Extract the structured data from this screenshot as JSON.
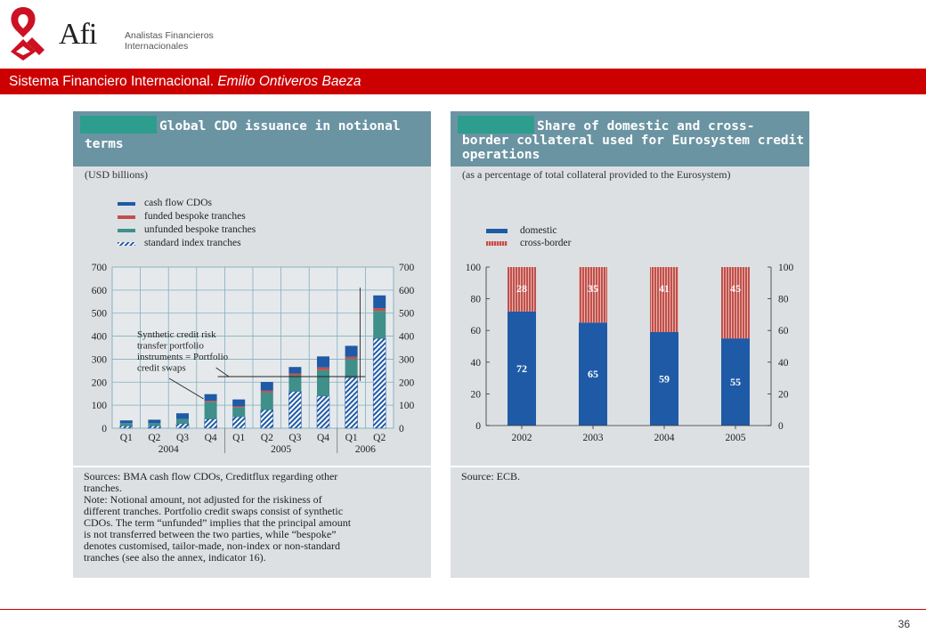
{
  "header": {
    "logo_text": "Afi",
    "logo_sub_line1": "Analistas Financieros",
    "logo_sub_line2": "Internacionales",
    "title_main": "Sistema Financiero Internacional. ",
    "title_author": "Emilio Ontiveros Baeza"
  },
  "footer": {
    "page_number": "36"
  },
  "colors": {
    "brand_red": "#cc0000",
    "panel_head": "#6b94a3",
    "domestic": "#1f5aa6",
    "cross_border": "#c0504d"
  },
  "left_panel": {
    "title_line1": "Global CDO issuance in notional",
    "title_line2": "terms",
    "subtitle": "(USD billions)",
    "annotation_lines": [
      "Synthetic credit risk",
      "transfer portfolio",
      "instruments = Portfolio",
      "credit swaps"
    ],
    "foot_lines": [
      "Sources: BMA cash flow CDOs, Creditflux regarding other",
      "tranches.",
      "Note: Notional amount, not adjusted for the riskiness of",
      "different tranches. Portfolio credit swaps consist of synthetic",
      "CDOs. The term “unfunded” implies that the principal amount",
      "is not transferred between the two parties, while “bespoke”",
      "denotes customised, tailor-made, non-index or non-standard",
      "tranches (see also the annex, indicator 16)."
    ]
  },
  "right_panel": {
    "title_line1": "Share of domestic and cross-",
    "title_line2": "border collateral used for Eurosystem credit",
    "title_line3": "operations",
    "subtitle": "(as a percentage of total collateral provided to the Eurosystem)",
    "foot_text": "Source: ECB."
  },
  "chart_data": [
    {
      "type": "bar",
      "stacked": true,
      "categories": [
        "Q1",
        "Q2",
        "Q3",
        "Q4",
        "Q1",
        "Q2",
        "Q3",
        "Q4",
        "Q1",
        "Q2"
      ],
      "year_labels": [
        {
          "label": "2004",
          "from": 0,
          "to": 3
        },
        {
          "label": "2005",
          "from": 4,
          "to": 7
        },
        {
          "label": "2006",
          "from": 8,
          "to": 9
        }
      ],
      "series": [
        {
          "name": "cash flow CDOs",
          "values": [
            12,
            15,
            25,
            28,
            30,
            38,
            28,
            48,
            48,
            55
          ]
        },
        {
          "name": "funded bespoke tranches",
          "values": [
            0,
            0,
            0,
            5,
            5,
            8,
            8,
            12,
            10,
            12
          ]
        },
        {
          "name": "unfunded bespoke tranches",
          "values": [
            12,
            12,
            20,
            75,
            40,
            75,
            70,
            112,
            80,
            120
          ]
        },
        {
          "name": "standard index tranches",
          "values": [
            10,
            10,
            20,
            40,
            50,
            80,
            160,
            140,
            220,
            390
          ]
        }
      ],
      "ylim": [
        0,
        700
      ],
      "yticks": [
        0,
        100,
        200,
        300,
        400,
        500,
        600,
        700
      ],
      "grid": true,
      "legend": "top-left"
    },
    {
      "type": "bar",
      "stacked": true,
      "categories": [
        "2002",
        "2003",
        "2004",
        "2005"
      ],
      "series": [
        {
          "name": "domestic",
          "values": [
            72,
            65,
            59,
            55
          ]
        },
        {
          "name": "cross-border",
          "values": [
            28,
            35,
            41,
            45
          ]
        }
      ],
      "ylim": [
        0,
        100
      ],
      "yticks": [
        0,
        20,
        40,
        60,
        80,
        100
      ],
      "grid": false,
      "legend": "top-left"
    }
  ]
}
